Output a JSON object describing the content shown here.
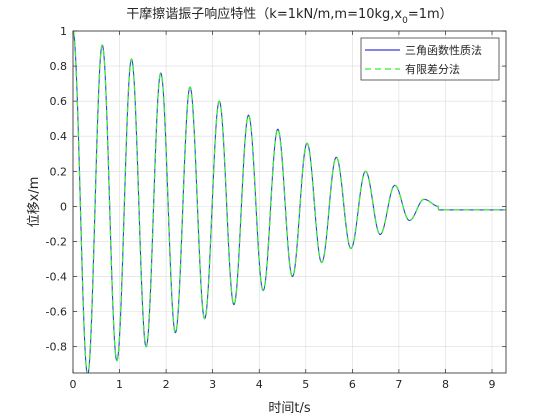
{
  "chart_data": {
    "type": "line",
    "title": "干摩擦谐振子响应特性（k=1kN/m,m=10kg,x",
    "title_subscript": "0",
    "title_tail": "=1m）",
    "xlabel": "时间t/s",
    "ylabel": "位移x/m",
    "xlim": [
      0,
      9.3
    ],
    "ylim": [
      -0.95,
      1.0
    ],
    "x_ticks": [
      0,
      1,
      2,
      3,
      4,
      5,
      6,
      7,
      8,
      9
    ],
    "x_tick_labels": [
      "0",
      "1",
      "2",
      "3",
      "4",
      "5",
      "6",
      "7",
      "8",
      "9"
    ],
    "y_ticks": [
      -0.8,
      -0.6,
      -0.4,
      -0.2,
      0,
      0.2,
      0.4,
      0.6,
      0.8,
      1
    ],
    "y_tick_labels": [
      "-0.8",
      "-0.6",
      "-0.4",
      "-0.2",
      "0",
      "0.2",
      "0.4",
      "0.6",
      "0.8",
      "1"
    ],
    "grid": true,
    "legend_position": "top-right",
    "model": {
      "omega": 10,
      "x0": 1,
      "decrement_per_halfcycle": 0.04,
      "stop_time": 7.85,
      "rest_position": -0.02,
      "t_end": 9.3
    },
    "series": [
      {
        "name": "三角函数性质法",
        "color": "#3b3bd6",
        "style": "solid"
      },
      {
        "name": "有限差分法",
        "color": "#33ee33",
        "style": "dashed"
      }
    ]
  }
}
